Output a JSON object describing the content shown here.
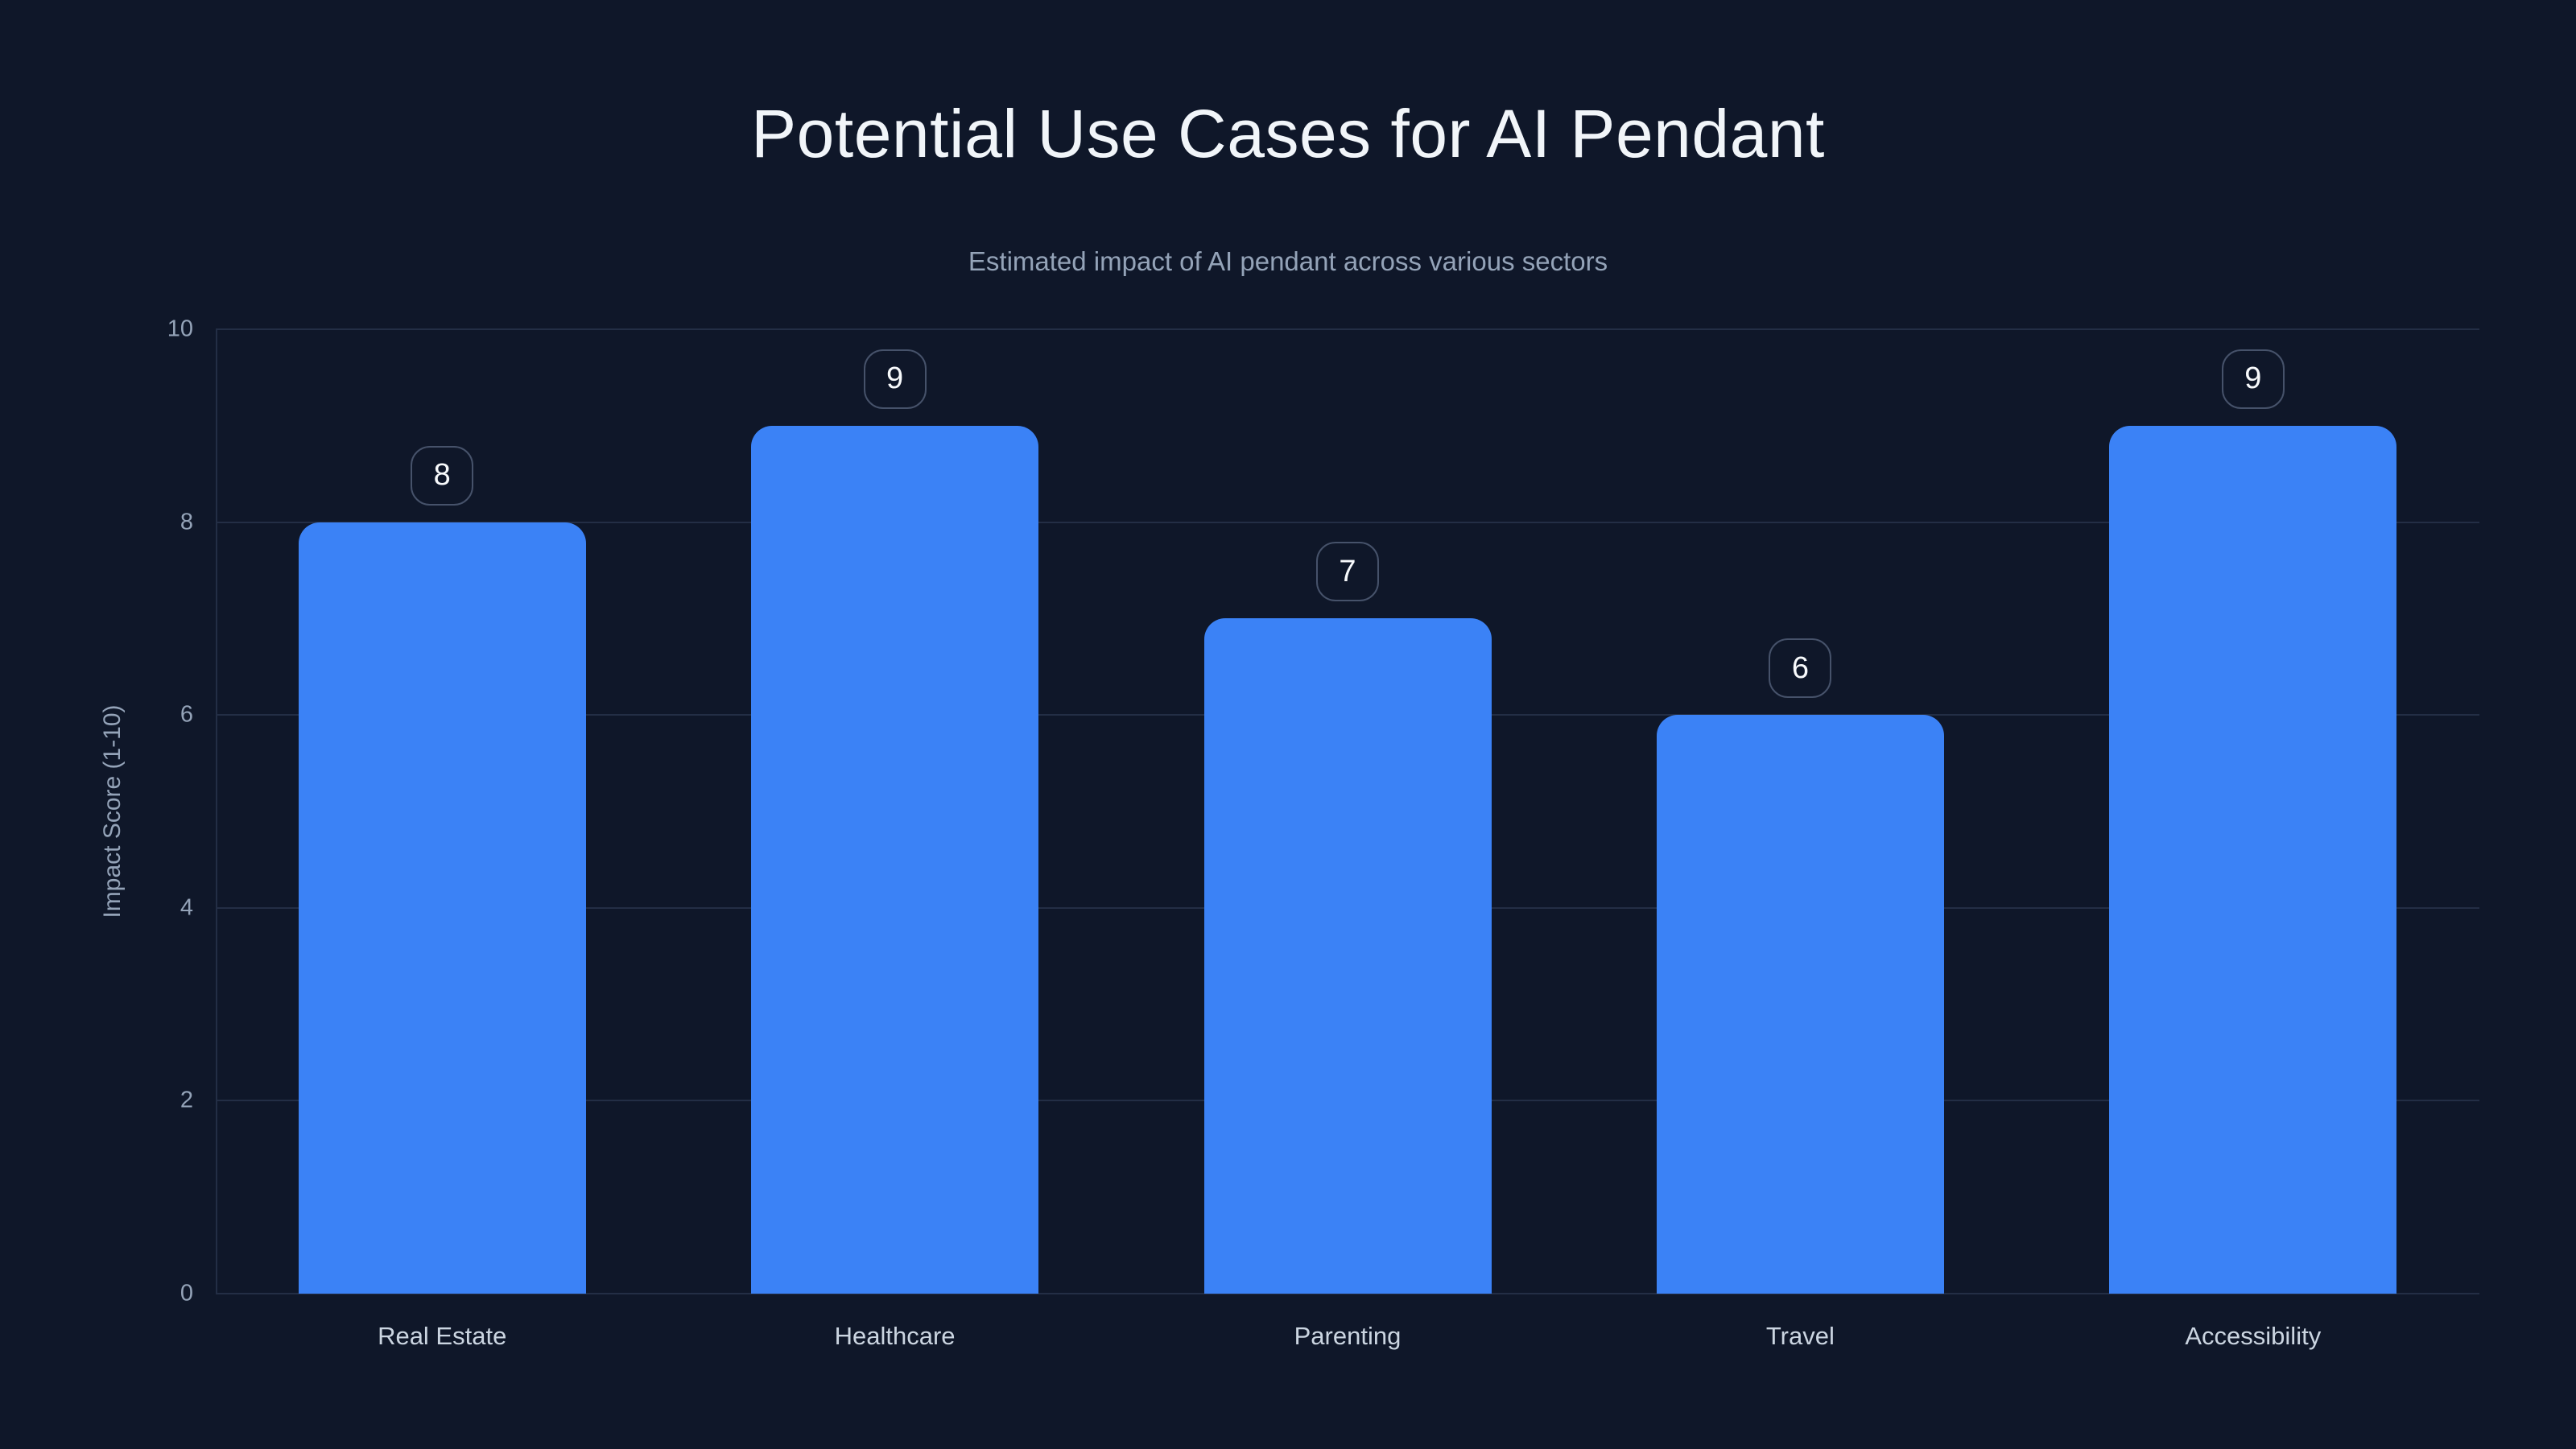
{
  "chart_data": {
    "type": "bar",
    "title": "Potential Use Cases for AI Pendant",
    "subtitle": "Estimated impact of AI pendant across various sectors",
    "categories": [
      "Real Estate",
      "Healthcare",
      "Parenting",
      "Travel",
      "Accessibility"
    ],
    "values": [
      8,
      9,
      7,
      6,
      9
    ],
    "value_labels": [
      "8",
      "9",
      "7",
      "6",
      "9"
    ],
    "xlabel": "",
    "ylabel": "Impact Score (1-10)",
    "ylim": [
      0,
      10
    ],
    "yticks": [
      0,
      2,
      4,
      6,
      8,
      10
    ],
    "grid": true,
    "legend": false,
    "colors": {
      "background": "#0f1729",
      "bar": "#3b82f6",
      "gridline": "#232e45",
      "title_text": "#f1f5f9",
      "subtitle_text": "#94a3b8",
      "tick_text": "#94a3b8",
      "category_text": "#cbd5e1",
      "badge_border": "#46526a",
      "badge_text": "#f8fafc"
    }
  }
}
